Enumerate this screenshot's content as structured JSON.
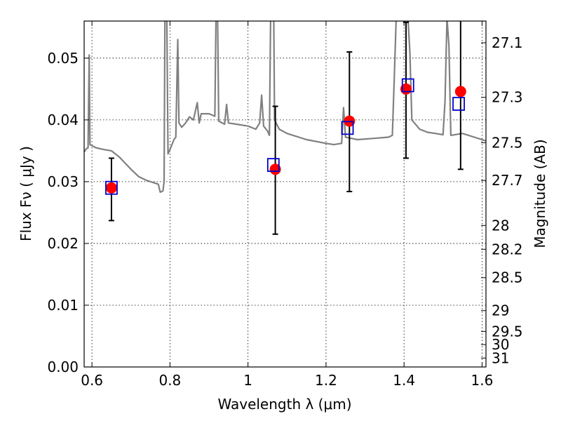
{
  "chart_data": {
    "type": "scatter",
    "title": "",
    "xlabel": "Wavelength  λ (μm)",
    "ylabel": "Flux  Fν  ( μJy )",
    "y2label": "Magnitude (AB)",
    "xlim": [
      0.58,
      1.61
    ],
    "ylim": [
      0.0,
      0.056
    ],
    "grid": true,
    "x_ticks": [
      {
        "v": 0.6,
        "label": "0.6"
      },
      {
        "v": 0.8,
        "label": "0.8"
      },
      {
        "v": 1.0,
        "label": "1"
      },
      {
        "v": 1.2,
        "label": "1.2"
      },
      {
        "v": 1.4,
        "label": "1.4"
      },
      {
        "v": 1.6,
        "label": "1.6"
      }
    ],
    "y_ticks": [
      {
        "v": 0.0,
        "label": "0.00"
      },
      {
        "v": 0.01,
        "label": "0.01"
      },
      {
        "v": 0.02,
        "label": "0.02"
      },
      {
        "v": 0.03,
        "label": "0.03"
      },
      {
        "v": 0.04,
        "label": "0.04"
      },
      {
        "v": 0.05,
        "label": "0.05"
      }
    ],
    "y2_ticks": [
      {
        "label": "27.1",
        "mag": 27.1
      },
      {
        "label": "27.3",
        "mag": 27.3
      },
      {
        "label": "27.5",
        "mag": 27.5
      },
      {
        "label": "27.7",
        "mag": 27.7
      },
      {
        "label": "28",
        "mag": 28.0
      },
      {
        "label": "28.2",
        "mag": 28.2
      },
      {
        "label": "28.5",
        "mag": 28.5
      },
      {
        "label": "29",
        "mag": 29.0
      },
      {
        "label": "29.5",
        "mag": 29.5
      },
      {
        "label": "30",
        "mag": 30.0
      },
      {
        "label": "31",
        "mag": 31.0
      }
    ],
    "model_spectrum": {
      "color": "#808080",
      "points": [
        [
          0.58,
          0.0348
        ],
        [
          0.585,
          0.0353
        ],
        [
          0.59,
          0.0355
        ],
        [
          0.593,
          0.0505
        ],
        [
          0.595,
          0.036
        ],
        [
          0.61,
          0.0355
        ],
        [
          0.63,
          0.0352
        ],
        [
          0.65,
          0.035
        ],
        [
          0.67,
          0.034
        ],
        [
          0.7,
          0.032
        ],
        [
          0.72,
          0.0308
        ],
        [
          0.74,
          0.0302
        ],
        [
          0.76,
          0.0298
        ],
        [
          0.77,
          0.0296
        ],
        [
          0.775,
          0.0283
        ],
        [
          0.782,
          0.0285
        ],
        [
          0.785,
          0.03
        ],
        [
          0.787,
          0.0565
        ],
        [
          0.792,
          0.0565
        ],
        [
          0.795,
          0.0345
        ],
        [
          0.8,
          0.0352
        ],
        [
          0.81,
          0.0368
        ],
        [
          0.815,
          0.0372
        ],
        [
          0.82,
          0.053
        ],
        [
          0.823,
          0.0395
        ],
        [
          0.83,
          0.0388
        ],
        [
          0.84,
          0.0395
        ],
        [
          0.85,
          0.0405
        ],
        [
          0.86,
          0.04
        ],
        [
          0.87,
          0.0428
        ],
        [
          0.875,
          0.0395
        ],
        [
          0.88,
          0.041
        ],
        [
          0.9,
          0.041
        ],
        [
          0.915,
          0.0406
        ],
        [
          0.918,
          0.0565
        ],
        [
          0.922,
          0.0565
        ],
        [
          0.925,
          0.0398
        ],
        [
          0.94,
          0.0393
        ],
        [
          0.945,
          0.0425
        ],
        [
          0.95,
          0.0395
        ],
        [
          0.97,
          0.0393
        ],
        [
          1.0,
          0.039
        ],
        [
          1.02,
          0.0385
        ],
        [
          1.03,
          0.0395
        ],
        [
          1.035,
          0.044
        ],
        [
          1.04,
          0.039
        ],
        [
          1.05,
          0.0382
        ],
        [
          1.055,
          0.0375
        ],
        [
          1.058,
          0.0565
        ],
        [
          1.066,
          0.0565
        ],
        [
          1.068,
          0.04
        ],
        [
          1.08,
          0.0385
        ],
        [
          1.1,
          0.0378
        ],
        [
          1.15,
          0.0368
        ],
        [
          1.2,
          0.0362
        ],
        [
          1.22,
          0.036
        ],
        [
          1.24,
          0.0362
        ],
        [
          1.245,
          0.042
        ],
        [
          1.25,
          0.0372
        ],
        [
          1.28,
          0.0368
        ],
        [
          1.32,
          0.037
        ],
        [
          1.36,
          0.0372
        ],
        [
          1.37,
          0.0375
        ],
        [
          1.375,
          0.047
        ],
        [
          1.38,
          0.0565
        ],
        [
          1.41,
          0.0565
        ],
        [
          1.415,
          0.051
        ],
        [
          1.42,
          0.04
        ],
        [
          1.44,
          0.0385
        ],
        [
          1.46,
          0.038
        ],
        [
          1.48,
          0.0378
        ],
        [
          1.5,
          0.0376
        ],
        [
          1.505,
          0.043
        ],
        [
          1.51,
          0.0565
        ],
        [
          1.515,
          0.052
        ],
        [
          1.52,
          0.0375
        ],
        [
          1.55,
          0.0378
        ],
        [
          1.58,
          0.0372
        ],
        [
          1.61,
          0.0366
        ]
      ]
    },
    "series": [
      {
        "marker": "circle",
        "color": "#ff0000",
        "points": [
          {
            "x": 0.65,
            "y": 0.029
          },
          {
            "x": 1.07,
            "y": 0.032
          },
          {
            "x": 1.26,
            "y": 0.0398
          },
          {
            "x": 1.405,
            "y": 0.045
          },
          {
            "x": 1.545,
            "y": 0.0446
          }
        ]
      },
      {
        "marker": "square",
        "color": "#0000cc",
        "points": [
          {
            "x": 0.65,
            "y": 0.029
          },
          {
            "x": 1.065,
            "y": 0.0327
          },
          {
            "x": 1.255,
            "y": 0.0387
          },
          {
            "x": 1.41,
            "y": 0.0456
          },
          {
            "x": 1.54,
            "y": 0.0426
          }
        ]
      }
    ],
    "error_bars": [
      {
        "x": 0.65,
        "lo": 0.0237,
        "hi": 0.0338
      },
      {
        "x": 1.07,
        "lo": 0.0215,
        "hi": 0.0422
      },
      {
        "x": 1.26,
        "lo": 0.0284,
        "hi": 0.051
      },
      {
        "x": 1.405,
        "lo": 0.0338,
        "hi": 0.0558
      },
      {
        "x": 1.545,
        "lo": 0.032,
        "hi": 0.0565
      }
    ]
  }
}
